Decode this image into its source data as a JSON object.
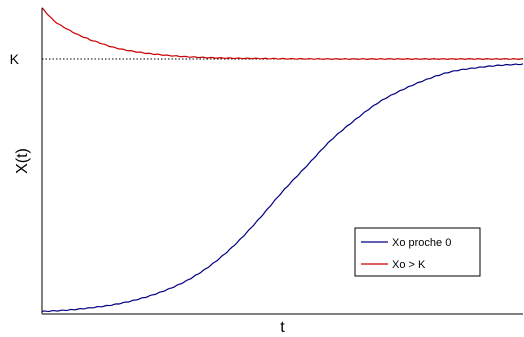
{
  "chart_data": {
    "type": "line",
    "title": "",
    "xlabel": "t",
    "ylabel": "X(t)",
    "x_tick_labels": [],
    "y_tick_labels": [
      "K"
    ],
    "grid": false,
    "legend_position": "bottom-right",
    "xlim": [
      0,
      10
    ],
    "ylim": [
      0,
      1.2
    ],
    "reference_line": {
      "label": "K",
      "y": 1.0,
      "style": "dotted",
      "color": "#000000"
    },
    "series": [
      {
        "name": "Xo proche 0",
        "color": "#000080",
        "x": [
          0,
          0.5,
          1,
          1.5,
          2,
          2.5,
          3,
          3.5,
          4,
          4.5,
          5,
          5.5,
          6,
          6.5,
          7,
          7.5,
          8,
          8.5,
          9,
          9.5,
          10
        ],
        "y": [
          0.01,
          0.015,
          0.024,
          0.037,
          0.058,
          0.088,
          0.13,
          0.19,
          0.27,
          0.37,
          0.48,
          0.58,
          0.68,
          0.76,
          0.83,
          0.88,
          0.92,
          0.95,
          0.965,
          0.975,
          0.98
        ]
      },
      {
        "name": "Xo > K",
        "color": "#cc0000",
        "x": [
          0,
          0.25,
          0.5,
          0.75,
          1,
          1.5,
          2,
          2.5,
          3,
          3.5,
          4,
          5,
          6,
          7,
          8,
          9,
          10
        ],
        "y": [
          1.2,
          1.15,
          1.12,
          1.095,
          1.075,
          1.045,
          1.027,
          1.016,
          1.009,
          1.005,
          1.003,
          1.001,
          1.0,
          1.0,
          1.0,
          1.0,
          1.0
        ]
      }
    ]
  }
}
